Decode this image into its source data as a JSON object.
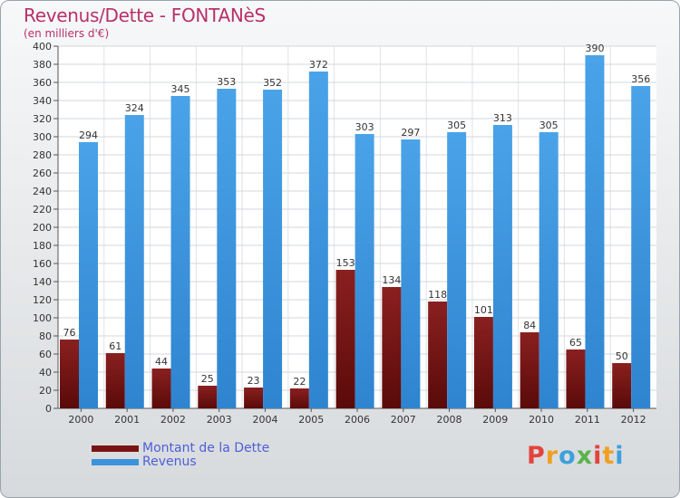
{
  "chart_data": {
    "type": "bar",
    "title": "Revenus/Dette - FONTANèS",
    "subtitle": "(en milliers d'€)",
    "categories": [
      "2000",
      "2001",
      "2002",
      "2003",
      "2004",
      "2005",
      "2006",
      "2007",
      "2008",
      "2009",
      "2010",
      "2011",
      "2012"
    ],
    "series": [
      {
        "name": "Montant de la Dette",
        "color": "#7a1414",
        "values": [
          76,
          61,
          44,
          25,
          23,
          22,
          153,
          134,
          118,
          101,
          84,
          65,
          50
        ]
      },
      {
        "name": "Revenus",
        "color": "#3a93dd",
        "values": [
          294,
          324,
          345,
          353,
          352,
          372,
          303,
          297,
          305,
          313,
          305,
          390,
          356
        ]
      }
    ],
    "ylim": [
      0,
      400
    ],
    "yticks": [
      "0",
      "20",
      "40",
      "60",
      "80",
      "100",
      "120",
      "140",
      "160",
      "180",
      "200",
      "220",
      "240",
      "260",
      "280",
      "300",
      "320",
      "340",
      "360",
      "380",
      "400"
    ],
    "grid": true,
    "legend_position": "bottom-left"
  },
  "brand": {
    "letters": [
      "P",
      "r",
      "o",
      "x",
      "i",
      "t",
      "i"
    ],
    "colors": [
      "#e2443c",
      "#f0a020",
      "#3e9fdc",
      "#5ab34a",
      "#e2443c",
      "#f0a020",
      "#3e9fdc"
    ]
  }
}
